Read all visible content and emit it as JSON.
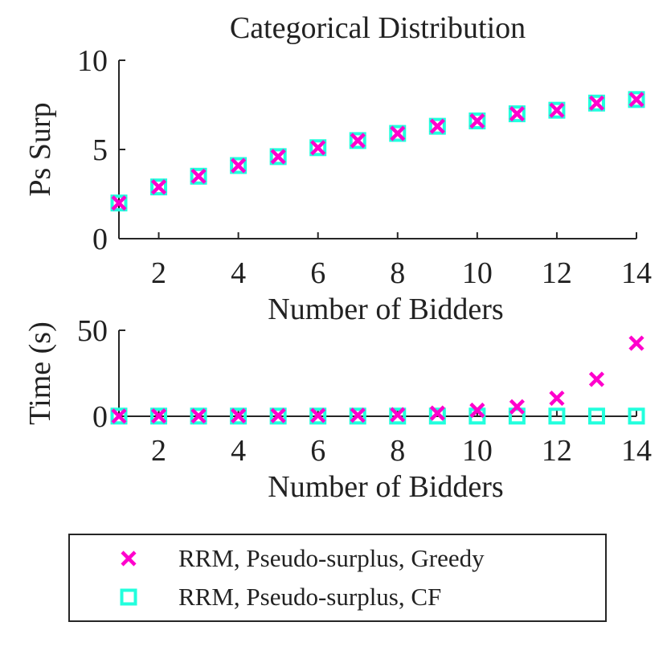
{
  "chart_data": [
    {
      "type": "scatter",
      "title": "Categorical Distribution",
      "xlabel": "Number of Bidders",
      "ylabel": "Ps Surp",
      "xlim": [
        1,
        14
      ],
      "ylim": [
        0,
        10
      ],
      "xticks": [
        "2",
        "4",
        "6",
        "8",
        "10",
        "12",
        "14"
      ],
      "yticks": [
        "0",
        "5",
        "10"
      ],
      "x": [
        1,
        2,
        3,
        4,
        5,
        6,
        7,
        8,
        9,
        10,
        11,
        12,
        13,
        14
      ],
      "series": [
        {
          "name": "RRM, Pseudo-surplus, Greedy",
          "marker": "x",
          "color": "#ff00cc",
          "values": [
            2.0,
            2.9,
            3.5,
            4.1,
            4.6,
            5.1,
            5.5,
            5.9,
            6.3,
            6.6,
            7.0,
            7.2,
            7.6,
            7.8
          ]
        },
        {
          "name": "RRM, Pseudo-surplus, CF",
          "marker": "square",
          "color": "#22ffdd",
          "values": [
            2.0,
            2.9,
            3.5,
            4.1,
            4.6,
            5.1,
            5.5,
            5.9,
            6.3,
            6.6,
            7.0,
            7.2,
            7.6,
            7.8
          ]
        }
      ],
      "grid": false
    },
    {
      "type": "scatter",
      "title": "",
      "xlabel": "Number of Bidders",
      "ylabel": "Time (s)",
      "xlim": [
        1,
        14
      ],
      "ylim": [
        0,
        50
      ],
      "xticks": [
        "2",
        "4",
        "6",
        "8",
        "10",
        "12",
        "14"
      ],
      "yticks": [
        "0",
        "50"
      ],
      "x": [
        1,
        2,
        3,
        4,
        5,
        6,
        7,
        8,
        9,
        10,
        11,
        12,
        13,
        14
      ],
      "series": [
        {
          "name": "RRM, Pseudo-surplus, Greedy",
          "marker": "x",
          "color": "#ff00cc",
          "values": [
            0.1,
            0.2,
            0.2,
            0.3,
            0.4,
            0.5,
            0.6,
            0.9,
            1.8,
            3.5,
            5.5,
            10.5,
            21.5,
            42.5
          ]
        },
        {
          "name": "RRM, Pseudo-surplus, CF",
          "marker": "square",
          "color": "#22ffdd",
          "values": [
            0.1,
            0.1,
            0.1,
            0.1,
            0.1,
            0.1,
            0.1,
            0.1,
            0.1,
            0.1,
            0.1,
            0.1,
            0.1,
            0.1
          ]
        }
      ],
      "grid": false
    }
  ],
  "legend": {
    "placement": "bottom-center",
    "entries": [
      {
        "label": "RRM, Pseudo-surplus, Greedy",
        "marker": "x",
        "color": "#ff00cc"
      },
      {
        "label": "RRM, Pseudo-surplus, CF",
        "marker": "square",
        "color": "#22ffdd"
      }
    ]
  }
}
